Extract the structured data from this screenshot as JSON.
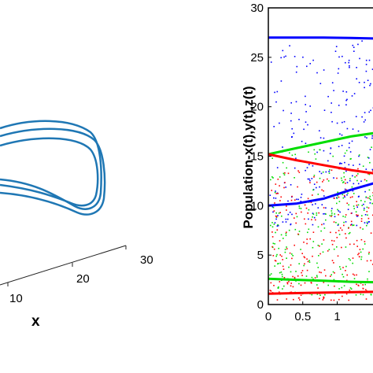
{
  "chart_data": [
    {
      "type": "line",
      "panel": "left-3d-phase-portrait",
      "xlabel": "x",
      "x_ticks": [
        "10",
        "20",
        "30"
      ],
      "series": [
        {
          "color": "#1f77b4",
          "style": "closed-orbit"
        }
      ]
    },
    {
      "type": "scatter",
      "panel": "right-bifurcation",
      "xlabel": "",
      "ylabel": "Population-x(t),y(t),z(t)",
      "xlim": [
        0,
        1.6
      ],
      "ylim": [
        0,
        30
      ],
      "x_ticks": [
        "0",
        "0.5",
        "1"
      ],
      "y_ticks": [
        "0",
        "5",
        "10",
        "15",
        "20",
        "25",
        "30"
      ],
      "grid": false,
      "series": [
        {
          "color": "#0000ff",
          "x": [
            0,
            0.4,
            0.8,
            1.2,
            1.6
          ],
          "y": [
            27.0,
            27.0,
            27.0,
            26.95,
            26.9
          ]
        },
        {
          "color": "#0000ff",
          "x": [
            0,
            0.4,
            0.8,
            1.2,
            1.6
          ],
          "y": [
            10.0,
            10.2,
            10.7,
            11.6,
            12.4
          ]
        },
        {
          "color": "#00dd00",
          "x": [
            0,
            0.4,
            0.8,
            1.2,
            1.6
          ],
          "y": [
            15.2,
            15.8,
            16.4,
            17.0,
            17.4
          ]
        },
        {
          "color": "#00dd00",
          "x": [
            0,
            0.4,
            0.8,
            1.2,
            1.6
          ],
          "y": [
            2.6,
            2.5,
            2.4,
            2.3,
            2.25
          ]
        },
        {
          "color": "#ff0000",
          "x": [
            0,
            0.4,
            0.8,
            1.2,
            1.6
          ],
          "y": [
            15.2,
            14.6,
            14.1,
            13.6,
            13.2
          ]
        },
        {
          "color": "#ff0000",
          "x": [
            0,
            0.4,
            0.8,
            1.2,
            1.6
          ],
          "y": [
            1.1,
            1.15,
            1.2,
            1.25,
            1.3
          ]
        }
      ],
      "scatter_clouds": [
        {
          "color": "#0000ff",
          "x_range": [
            0,
            1.6
          ],
          "y_range": [
            8,
            27
          ]
        },
        {
          "color": "#00dd00",
          "x_range": [
            0,
            1.6
          ],
          "y_range": [
            1,
            16
          ]
        },
        {
          "color": "#ff0000",
          "x_range": [
            0,
            1.6
          ],
          "y_range": [
            0.5,
            14
          ]
        }
      ]
    }
  ]
}
